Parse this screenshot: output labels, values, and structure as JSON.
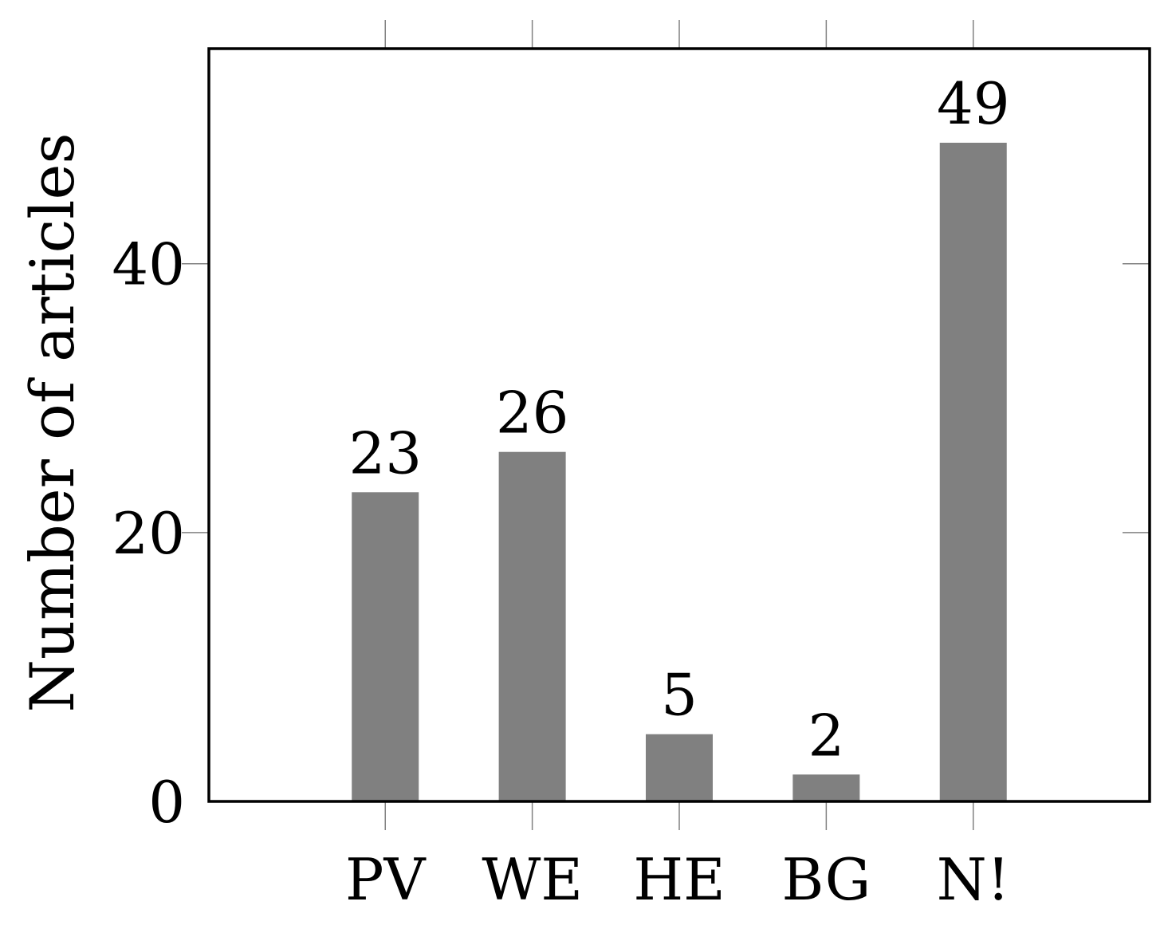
{
  "chart_data": {
    "type": "bar",
    "title": "",
    "xlabel": "",
    "ylabel": "Number of articles",
    "categories": [
      "PV",
      "WE",
      "HE",
      "BG",
      "N!"
    ],
    "values": [
      23,
      26,
      5,
      2,
      49
    ],
    "value_labels": [
      "23",
      "26",
      "5",
      "2",
      "49"
    ],
    "y_ticks": [
      0,
      20,
      40
    ],
    "y_tick_labels": [
      "0",
      "20",
      "40"
    ],
    "ylim": [
      0,
      56
    ],
    "xlim": [
      -1.2,
      5.2
    ],
    "grid": false,
    "legend": "none",
    "bar_color": "#808080",
    "axis_color": "#000000"
  }
}
